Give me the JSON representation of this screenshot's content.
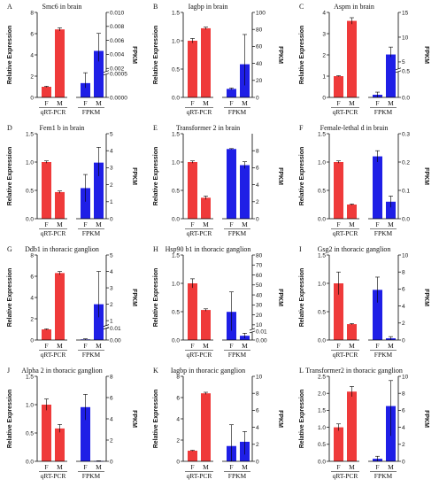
{
  "figure": {
    "y_label_left": "Relative Expression",
    "y_label_right": "FPKM",
    "group_labels": [
      "qRT-PCR",
      "FPKM"
    ],
    "bar_labels": [
      "F",
      "M"
    ],
    "colors": {
      "qrt": "#ef3a3a",
      "fpkm": "#1f1fe6"
    }
  },
  "chart_data": [
    {
      "letter": "A",
      "title": "Smc6 in brain",
      "type": "bar",
      "left_ticks": [
        "0",
        "2",
        "4",
        "6",
        "8"
      ],
      "left_ylim": [
        0,
        8
      ],
      "right_ticks": [
        "0.0000",
        "0.0005",
        "0.002",
        "0.004",
        "0.006",
        "0.008",
        "0.010"
      ],
      "right_break": true,
      "qrt": {
        "values": [
          1.0,
          6.4
        ],
        "errors": [
          0.05,
          0.15
        ]
      },
      "fpkm": {
        "values": [
          0.0003,
          0.0045
        ],
        "err_low": [
          0.0001,
          0.0015
        ],
        "err_high": [
          0.0003,
          0.0025
        ]
      }
    },
    {
      "letter": "B",
      "title": "Iagbp in brain",
      "type": "bar",
      "left_ticks": [
        "0.0",
        "0.5",
        "1.0",
        "1.5"
      ],
      "left_ylim": [
        0,
        1.5
      ],
      "right_ticks": [
        "0",
        "20",
        "40",
        "60",
        "80",
        "100"
      ],
      "right_ylim": [
        0,
        100
      ],
      "qrt": {
        "values": [
          1.0,
          1.22
        ],
        "errors": [
          0.04,
          0.02
        ]
      },
      "fpkm": {
        "values": [
          10,
          39
        ],
        "err_low": [
          1,
          25
        ],
        "err_high": [
          1,
          35
        ]
      }
    },
    {
      "letter": "C",
      "title": "Aspm in brain",
      "type": "bar",
      "left_ticks": [
        "0",
        "1",
        "2",
        "3",
        "4"
      ],
      "left_ylim": [
        0,
        4
      ],
      "right_ticks": [
        "0.0",
        "0.5",
        "5",
        "10",
        "15"
      ],
      "right_break": true,
      "qrt": {
        "values": [
          1.0,
          3.6
        ],
        "errors": [
          0.02,
          0.15
        ]
      },
      "fpkm": {
        "values": [
          0.05,
          6.5
        ],
        "err_low": [
          0.05,
          0.5
        ],
        "err_high": [
          0.05,
          1.5
        ]
      }
    },
    {
      "letter": "D",
      "title": "Fem1 b in brain",
      "type": "bar",
      "left_ticks": [
        "0.0",
        "0.5",
        "1.0",
        "1.5"
      ],
      "left_ylim": [
        0,
        1.5
      ],
      "right_ticks": [
        "0",
        "1",
        "2",
        "3",
        "4",
        "5"
      ],
      "right_ylim": [
        0,
        5
      ],
      "qrt": {
        "values": [
          1.0,
          0.47
        ],
        "errors": [
          0.02,
          0.02
        ]
      },
      "fpkm": {
        "values": [
          1.8,
          3.3
        ],
        "err_low": [
          0.8,
          0.8
        ],
        "err_high": [
          0.8,
          0.9
        ]
      }
    },
    {
      "letter": "E",
      "title": "Transformer 2 in brain",
      "type": "bar",
      "left_ticks": [
        "0.0",
        "0.5",
        "1.0",
        "1.5"
      ],
      "left_ylim": [
        0,
        1.5
      ],
      "right_ticks": [
        "0",
        "2",
        "4",
        "6",
        "8"
      ],
      "right_ylim": [
        0,
        10
      ],
      "qrt": {
        "values": [
          1.0,
          0.37
        ],
        "errors": [
          0.02,
          0.03
        ]
      },
      "fpkm": {
        "values": [
          8.2,
          6.3
        ],
        "err_low": [
          0.05,
          0.4
        ],
        "err_high": [
          0.05,
          0.4
        ]
      }
    },
    {
      "letter": "F",
      "title": "Female-lethal d in brain",
      "type": "bar",
      "left_ticks": [
        "0.0",
        "0.5",
        "1.0",
        "1.5"
      ],
      "left_ylim": [
        0,
        1.5
      ],
      "right_ticks": [
        "0.0",
        "0.1",
        "0.2",
        "0.3"
      ],
      "right_ylim": [
        0,
        0.3
      ],
      "qrt": {
        "values": [
          1.0,
          0.25
        ],
        "errors": [
          0.02,
          0.01
        ]
      },
      "fpkm": {
        "values": [
          0.22,
          0.06
        ],
        "err_low": [
          0.02,
          0.02
        ],
        "err_high": [
          0.02,
          0.02
        ]
      }
    },
    {
      "letter": "G",
      "title": "Ddb1 in thoracic ganglion",
      "type": "bar",
      "left_ticks": [
        "0",
        "2",
        "4",
        "6",
        "8"
      ],
      "left_ylim": [
        0,
        8
      ],
      "right_ticks": [
        "0.00",
        "0.01",
        "1",
        "2",
        "3",
        "4",
        "5"
      ],
      "right_break": true,
      "qrt": {
        "values": [
          1.0,
          6.3
        ],
        "errors": [
          0.05,
          0.15
        ]
      },
      "fpkm": {
        "values": [
          0.0005,
          2.0
        ],
        "err_low": [
          0.0005,
          0.8
        ],
        "err_high": [
          0.0005,
          2.0
        ]
      }
    },
    {
      "letter": "H",
      "title": "Hsp90 b1 in thoracic ganglion",
      "type": "bar",
      "left_ticks": [
        "0.0",
        "0.5",
        "1.0",
        "1.5"
      ],
      "left_ylim": [
        0,
        1.5
      ],
      "right_ticks": [
        "0.00",
        "0.01",
        "10",
        "20",
        "30",
        "40",
        "50",
        "60",
        "70",
        "80"
      ],
      "right_break": true,
      "qrt": {
        "values": [
          1.0,
          0.53
        ],
        "errors": [
          0.08,
          0.02
        ]
      },
      "fpkm": {
        "values": [
          23,
          0.005
        ],
        "err_low": [
          20,
          0.003
        ],
        "err_high": [
          20,
          0.003
        ]
      }
    },
    {
      "letter": "I",
      "title": "Gsg2 in thoracic ganglion",
      "type": "bar",
      "left_ticks": [
        "0.0",
        "0.5",
        "1.0",
        "1.5"
      ],
      "left_ylim": [
        0,
        1.5
      ],
      "right_ticks": [
        "0",
        "2",
        "4",
        "6",
        "8",
        "10"
      ],
      "right_ylim": [
        0,
        10
      ],
      "qrt": {
        "values": [
          1.0,
          0.28
        ],
        "errors": [
          0.2,
          0.01
        ]
      },
      "fpkm": {
        "values": [
          5.9,
          0.2
        ],
        "err_low": [
          1.5,
          0.2
        ],
        "err_high": [
          1.5,
          0.2
        ]
      }
    },
    {
      "letter": "J",
      "title": "Alpha 2 in thoracic ganglion",
      "type": "bar",
      "left_ticks": [
        "0.0",
        "0.5",
        "1.0",
        "1.5"
      ],
      "left_ylim": [
        0,
        1.5
      ],
      "right_ticks": [
        "0",
        "2",
        "4",
        "6",
        "8"
      ],
      "right_ylim": [
        0,
        8
      ],
      "qrt": {
        "values": [
          1.0,
          0.58
        ],
        "errors": [
          0.1,
          0.07
        ]
      },
      "fpkm": {
        "values": [
          5.1,
          0.03
        ],
        "err_low": [
          1.2,
          0.02
        ],
        "err_high": [
          1.2,
          0.02
        ]
      }
    },
    {
      "letter": "K",
      "title": "Iagbp in thoracic ganglion",
      "type": "bar",
      "left_ticks": [
        "0",
        "2",
        "4",
        "6",
        "8"
      ],
      "left_ylim": [
        0,
        8
      ],
      "right_ticks": [
        "0",
        "2",
        "4",
        "6",
        "8",
        "10"
      ],
      "right_ylim": [
        0,
        10
      ],
      "qrt": {
        "values": [
          1.0,
          6.4
        ],
        "errors": [
          0.04,
          0.1
        ]
      },
      "fpkm": {
        "values": [
          1.8,
          2.3
        ],
        "err_low": [
          1.8,
          1.5
        ],
        "err_high": [
          2.5,
          1.2
        ]
      }
    },
    {
      "letter": "L",
      "title": "Transformer2 in thoracic ganglion",
      "type": "bar",
      "left_ticks": [
        "0.0",
        "0.5",
        "1.0",
        "1.5",
        "2.0",
        "2.5"
      ],
      "left_ylim": [
        0,
        2.5
      ],
      "right_ticks": [
        "0",
        "2",
        "4",
        "6",
        "8",
        "10"
      ],
      "right_ylim": [
        0,
        10
      ],
      "qrt": {
        "values": [
          1.0,
          2.05
        ],
        "errors": [
          0.1,
          0.15
        ]
      },
      "fpkm": {
        "values": [
          0.3,
          6.5
        ],
        "err_low": [
          0.3,
          3.5
        ],
        "err_high": [
          0.3,
          3.0
        ]
      }
    }
  ]
}
